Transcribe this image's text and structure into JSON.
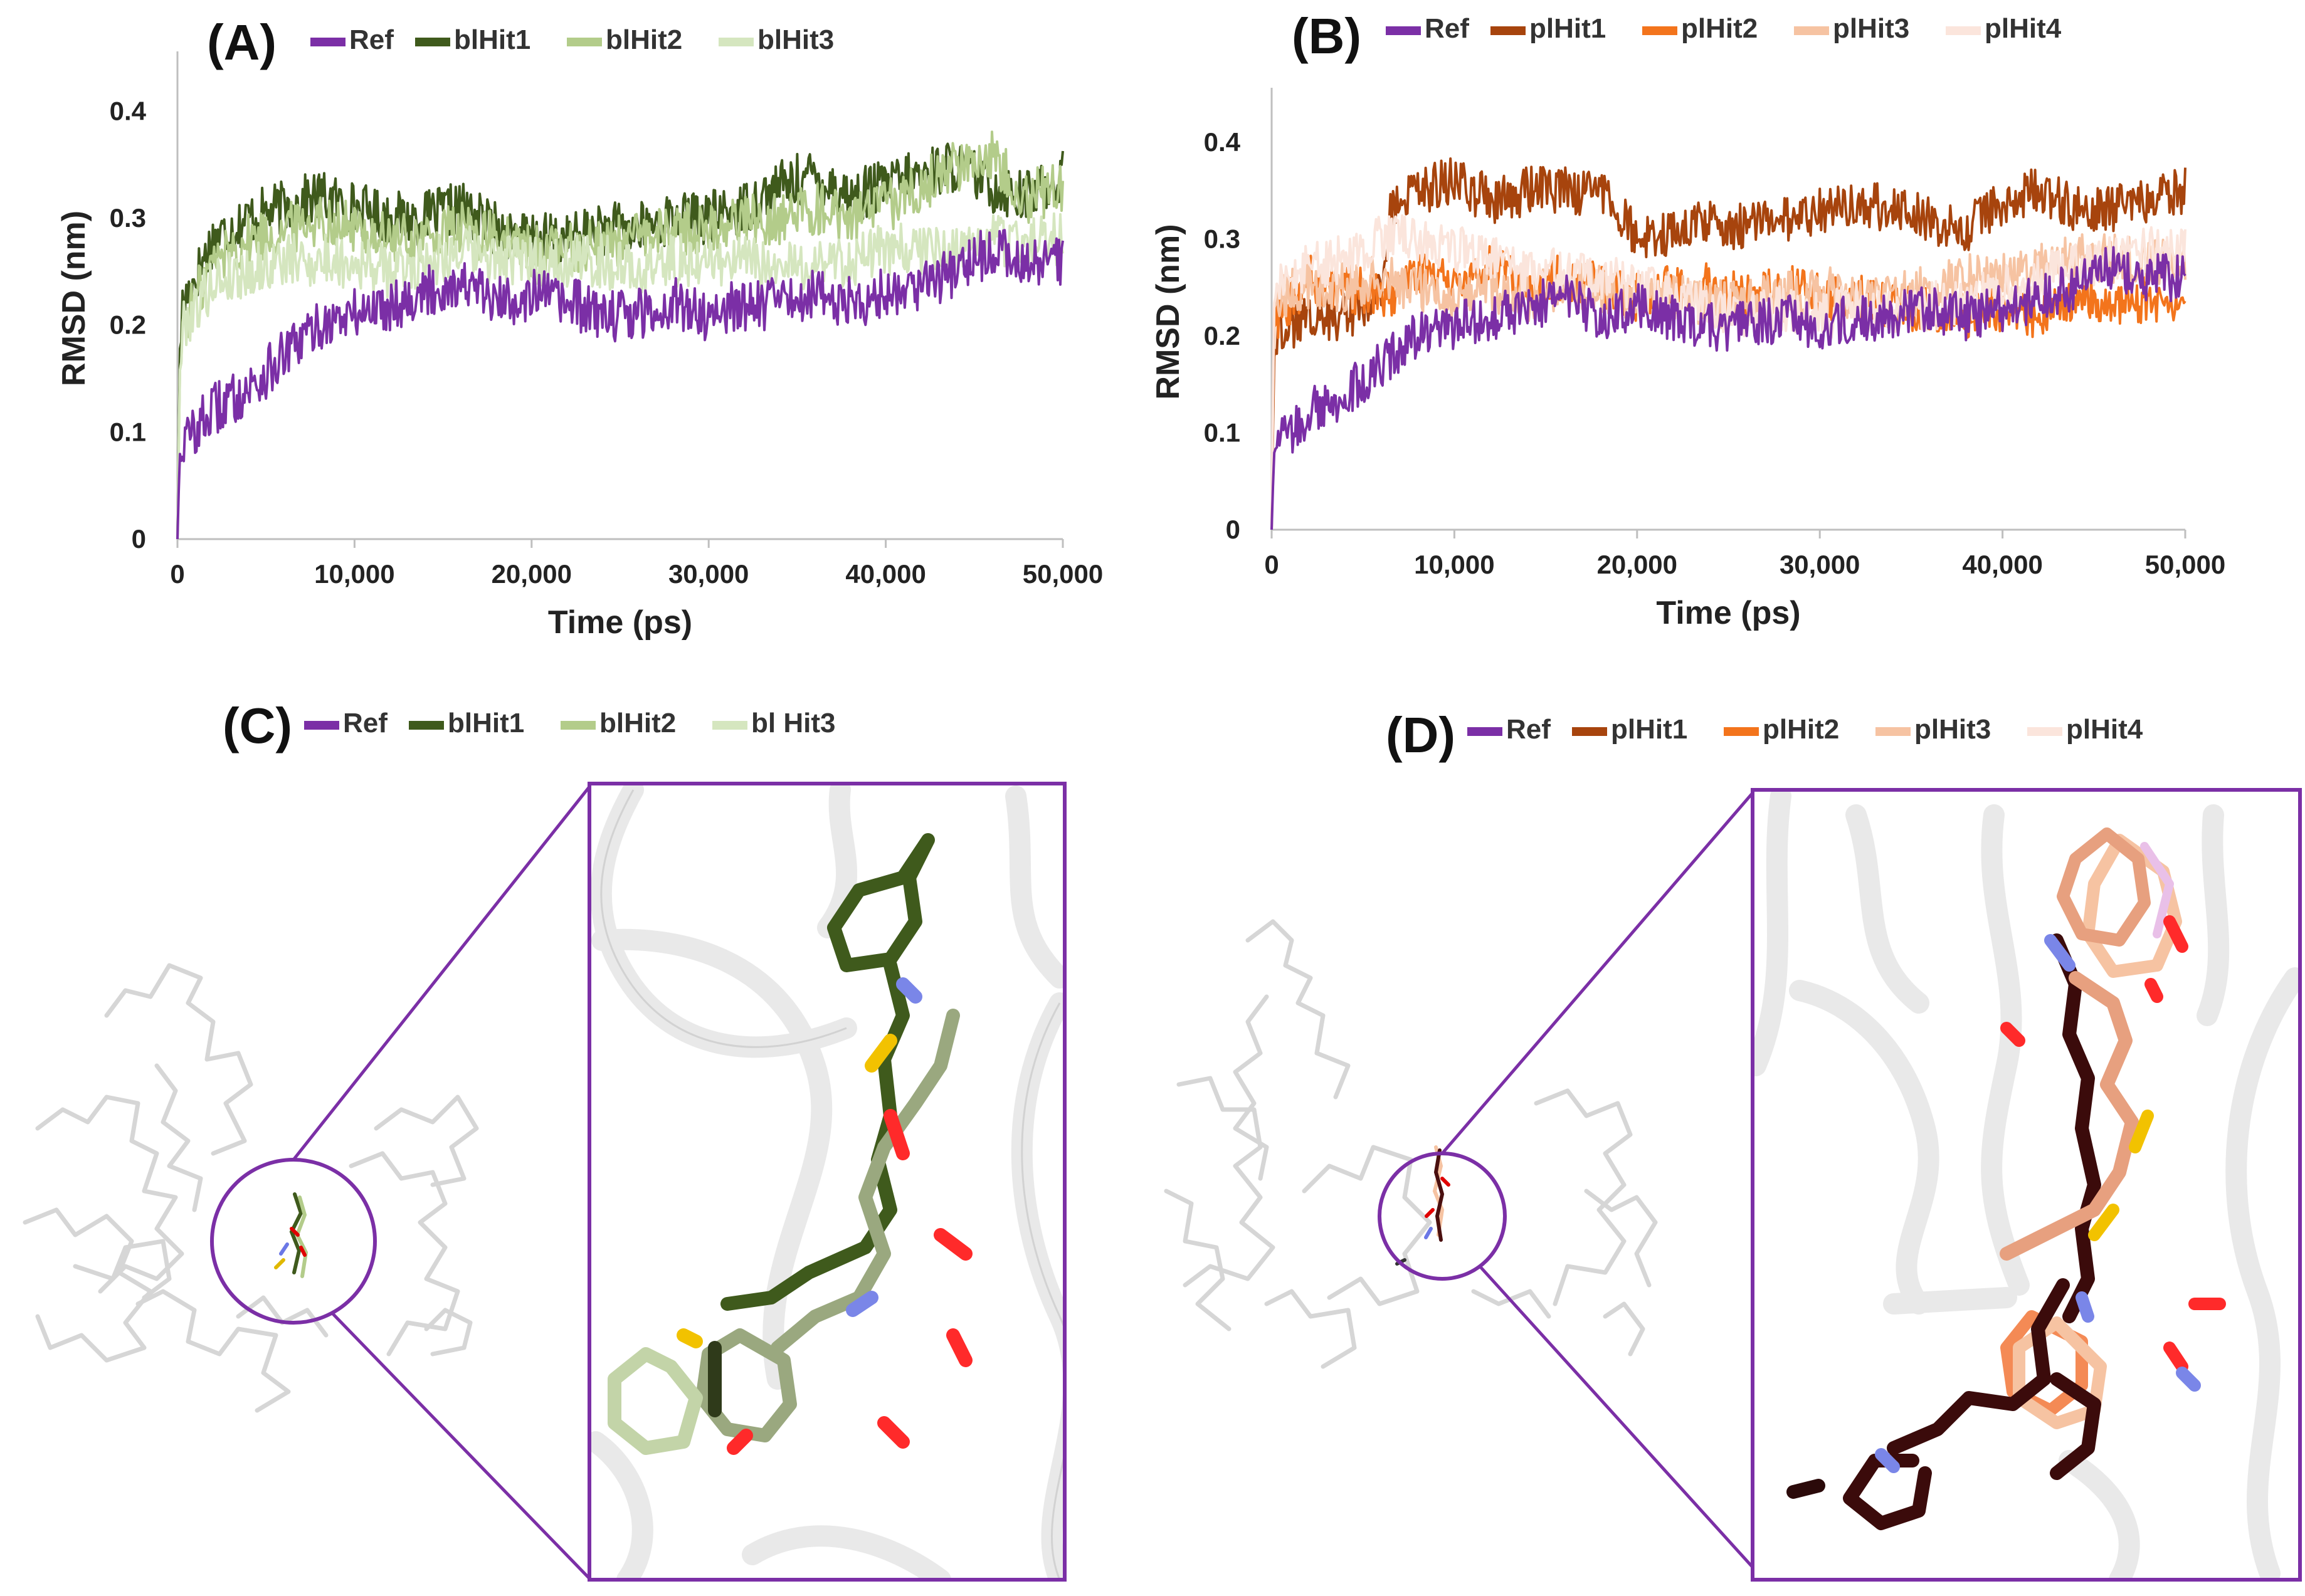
{
  "panels": {
    "A": {
      "label": "(A)"
    },
    "B": {
      "label": "(B)"
    },
    "C": {
      "label": "(C)",
      "legend": [
        "Ref",
        "blHit1",
        "blHit2",
        "bl Hit3"
      ]
    },
    "D": {
      "label": "(D)",
      "legend": [
        "Ref",
        "plHit1",
        "plHit2",
        "plHit3",
        "plHit4"
      ]
    }
  },
  "colors": {
    "ref": "#7b2fa6",
    "blHit1": "#3f5a1c",
    "blHit2": "#b3cc8a",
    "blHit3": "#d5e6bf",
    "blMid": "#6f9a3b",
    "plHit1": "#a7440d",
    "plHit2": "#f3741c",
    "plHit3": "#f6c3a2",
    "plHit4": "#fbe5dc",
    "frame": "#7b2fa6",
    "protein": "#d9d9d9"
  },
  "chart_data": [
    {
      "type": "line",
      "panel": "A",
      "xlabel": "Time (ps)",
      "ylabel": "RMSD (nm)",
      "xlim": [
        0,
        50000
      ],
      "ylim": [
        0,
        0.45
      ],
      "xticks": [
        "0",
        "10,000",
        "20,000",
        "30,000",
        "40,000",
        "50,000"
      ],
      "yticks": [
        "0",
        "0.1",
        "0.2",
        "0.3",
        "0.4"
      ],
      "legend_position": "top",
      "series": [
        {
          "name": "Ref",
          "color": "#7b2fa6",
          "x": [
            0,
            300,
            2000,
            4000,
            6000,
            8000,
            10000,
            12000,
            14000,
            16000,
            18000,
            20000,
            22000,
            24000,
            26000,
            28000,
            30000,
            32000,
            34000,
            36000,
            38000,
            40000,
            42000,
            44000,
            46000,
            48000,
            50000
          ],
          "y": [
            0.07,
            0.09,
            0.12,
            0.14,
            0.17,
            0.2,
            0.21,
            0.22,
            0.23,
            0.24,
            0.22,
            0.23,
            0.22,
            0.21,
            0.21,
            0.22,
            0.21,
            0.22,
            0.22,
            0.23,
            0.22,
            0.23,
            0.24,
            0.25,
            0.27,
            0.26,
            0.26
          ]
        },
        {
          "name": "blHit1",
          "color": "#3f5a1c",
          "x": [
            0,
            300,
            2000,
            4000,
            6000,
            8000,
            10000,
            12000,
            14000,
            16000,
            18000,
            20000,
            22000,
            24000,
            26000,
            28000,
            30000,
            32000,
            34000,
            36000,
            38000,
            40000,
            42000,
            44000,
            46000,
            48000,
            50000
          ],
          "y": [
            0.14,
            0.22,
            0.28,
            0.3,
            0.31,
            0.32,
            0.31,
            0.3,
            0.3,
            0.31,
            0.29,
            0.28,
            0.28,
            0.29,
            0.29,
            0.3,
            0.3,
            0.31,
            0.33,
            0.34,
            0.32,
            0.33,
            0.34,
            0.35,
            0.33,
            0.32,
            0.34
          ]
        },
        {
          "name": "blHit2",
          "color": "#b3cc8a",
          "x": [
            0,
            300,
            2000,
            4000,
            6000,
            8000,
            10000,
            12000,
            14000,
            16000,
            18000,
            20000,
            22000,
            24000,
            26000,
            28000,
            30000,
            32000,
            34000,
            36000,
            38000,
            40000,
            42000,
            44000,
            46000,
            48000,
            50000
          ],
          "y": [
            0.12,
            0.2,
            0.26,
            0.28,
            0.29,
            0.3,
            0.29,
            0.28,
            0.28,
            0.29,
            0.28,
            0.27,
            0.27,
            0.28,
            0.28,
            0.29,
            0.29,
            0.3,
            0.3,
            0.31,
            0.3,
            0.31,
            0.33,
            0.35,
            0.36,
            0.32,
            0.33
          ]
        },
        {
          "name": "blHit3",
          "color": "#d5e6bf",
          "x": [
            0,
            300,
            2000,
            4000,
            6000,
            8000,
            10000,
            12000,
            14000,
            16000,
            18000,
            20000,
            22000,
            24000,
            26000,
            28000,
            30000,
            32000,
            34000,
            36000,
            38000,
            40000,
            42000,
            44000,
            46000,
            48000,
            50000
          ],
          "y": [
            0.12,
            0.2,
            0.24,
            0.25,
            0.26,
            0.26,
            0.26,
            0.25,
            0.26,
            0.27,
            0.26,
            0.26,
            0.26,
            0.26,
            0.25,
            0.26,
            0.26,
            0.26,
            0.25,
            0.26,
            0.26,
            0.27,
            0.27,
            0.27,
            0.28,
            0.28,
            0.28
          ]
        }
      ]
    },
    {
      "type": "line",
      "panel": "B",
      "xlabel": "Time (ps)",
      "ylabel": "RMSD (nm)",
      "xlim": [
        0,
        50000
      ],
      "ylim": [
        0,
        0.45
      ],
      "xticks": [
        "0",
        "10,000",
        "20,000",
        "30,000",
        "40,000",
        "50,000"
      ],
      "yticks": [
        "0",
        "0.1",
        "0.2",
        "0.3",
        "0.4"
      ],
      "legend_position": "top",
      "series": [
        {
          "name": "Ref",
          "color": "#7b2fa6",
          "x": [
            0,
            300,
            2000,
            4000,
            6000,
            8000,
            10000,
            12000,
            14000,
            16000,
            18000,
            20000,
            22000,
            24000,
            26000,
            28000,
            30000,
            32000,
            34000,
            36000,
            38000,
            40000,
            42000,
            44000,
            46000,
            48000,
            50000
          ],
          "y": [
            0.07,
            0.09,
            0.12,
            0.14,
            0.17,
            0.2,
            0.21,
            0.22,
            0.23,
            0.24,
            0.22,
            0.23,
            0.22,
            0.21,
            0.21,
            0.22,
            0.21,
            0.22,
            0.22,
            0.23,
            0.22,
            0.23,
            0.24,
            0.25,
            0.27,
            0.26,
            0.26
          ]
        },
        {
          "name": "plHit1",
          "color": "#a7440d",
          "x": [
            0,
            300,
            2000,
            4000,
            6000,
            6500,
            8000,
            10000,
            12000,
            14000,
            16000,
            18000,
            20000,
            22000,
            24000,
            26000,
            28000,
            30000,
            32000,
            34000,
            36000,
            38000,
            40000,
            42000,
            44000,
            46000,
            48000,
            50000
          ],
          "y": [
            0.16,
            0.2,
            0.22,
            0.22,
            0.24,
            0.33,
            0.35,
            0.36,
            0.34,
            0.35,
            0.35,
            0.35,
            0.3,
            0.31,
            0.32,
            0.31,
            0.32,
            0.33,
            0.34,
            0.33,
            0.32,
            0.31,
            0.34,
            0.35,
            0.33,
            0.33,
            0.34,
            0.35
          ]
        },
        {
          "name": "plHit2",
          "color": "#f3741c",
          "x": [
            0,
            300,
            2000,
            4000,
            6000,
            8000,
            10000,
            12000,
            14000,
            16000,
            18000,
            20000,
            22000,
            24000,
            26000,
            28000,
            30000,
            32000,
            34000,
            36000,
            38000,
            40000,
            42000,
            44000,
            46000,
            48000,
            50000
          ],
          "y": [
            0.2,
            0.22,
            0.26,
            0.25,
            0.24,
            0.26,
            0.26,
            0.27,
            0.25,
            0.26,
            0.25,
            0.24,
            0.25,
            0.25,
            0.24,
            0.25,
            0.24,
            0.24,
            0.23,
            0.23,
            0.22,
            0.23,
            0.22,
            0.24,
            0.23,
            0.24,
            0.23
          ]
        },
        {
          "name": "plHit3",
          "color": "#f6c3a2",
          "x": [
            0,
            300,
            2000,
            4000,
            6000,
            8000,
            10000,
            12000,
            14000,
            16000,
            18000,
            20000,
            22000,
            24000,
            26000,
            28000,
            30000,
            32000,
            34000,
            36000,
            38000,
            40000,
            42000,
            44000,
            46000,
            48000,
            50000
          ],
          "y": [
            0.22,
            0.24,
            0.25,
            0.25,
            0.26,
            0.25,
            0.24,
            0.25,
            0.24,
            0.25,
            0.25,
            0.24,
            0.24,
            0.23,
            0.24,
            0.24,
            0.25,
            0.24,
            0.24,
            0.25,
            0.26,
            0.26,
            0.27,
            0.28,
            0.28,
            0.28,
            0.27
          ]
        },
        {
          "name": "plHit4",
          "color": "#fbe5dc",
          "x": [
            0,
            300,
            2000,
            4000,
            6000,
            8000,
            10000,
            12000,
            14000,
            16000,
            18000,
            20000,
            22000,
            24000,
            26000,
            28000,
            30000,
            32000,
            34000,
            36000,
            38000,
            40000,
            42000,
            44000,
            46000,
            48000,
            50000
          ],
          "y": [
            0.22,
            0.25,
            0.27,
            0.28,
            0.3,
            0.3,
            0.29,
            0.28,
            0.26,
            0.27,
            0.26,
            0.25,
            0.24,
            0.23,
            0.22,
            0.23,
            0.22,
            0.23,
            0.22,
            0.23,
            0.24,
            0.25,
            0.26,
            0.27,
            0.28,
            0.29,
            0.29
          ]
        }
      ]
    }
  ]
}
